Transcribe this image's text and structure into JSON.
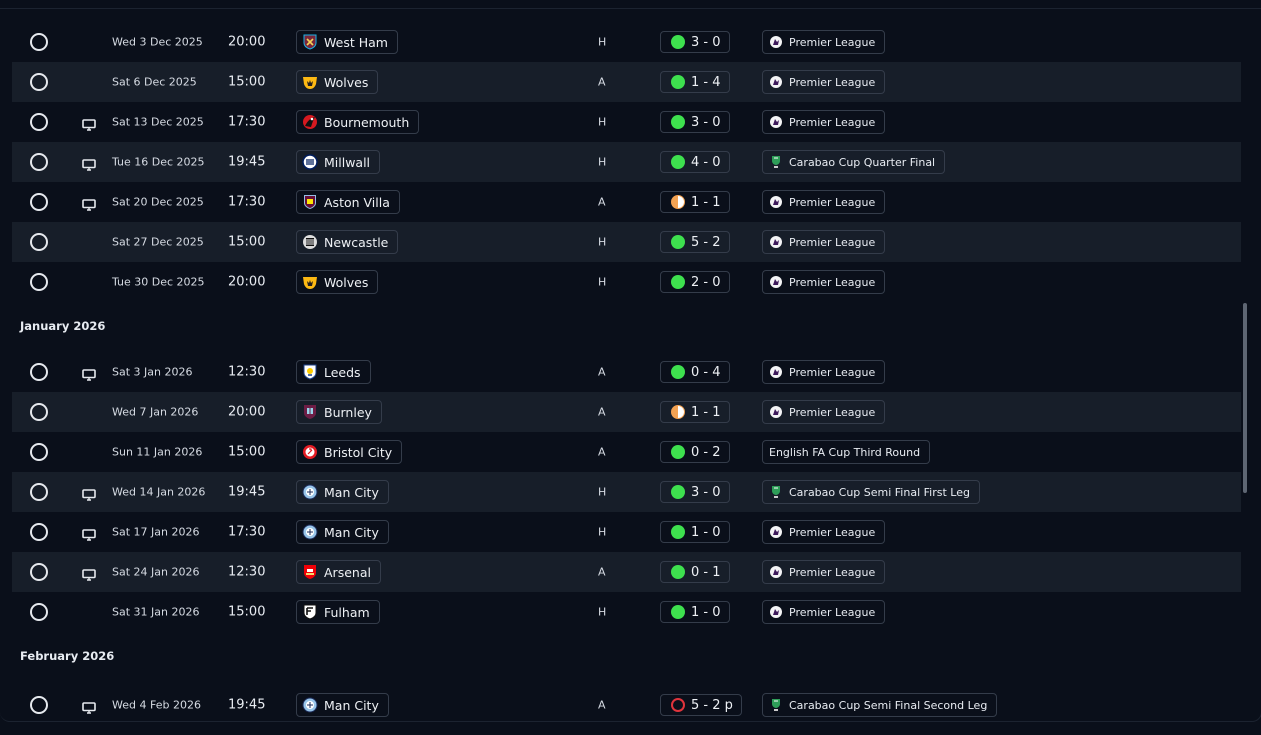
{
  "fixtures_dec": [
    {
      "date": "Wed 3 Dec 2025",
      "time": "20:00",
      "team": "West Ham",
      "crest": "westham",
      "tv": false,
      "venue": "H",
      "score": "3 - 0",
      "result": "win",
      "competition": "Premier League",
      "comp_icon": "pl"
    },
    {
      "date": "Sat 6 Dec 2025",
      "time": "15:00",
      "team": "Wolves",
      "crest": "wolves",
      "tv": false,
      "venue": "A",
      "score": "1 - 4",
      "result": "win",
      "competition": "Premier League",
      "comp_icon": "pl"
    },
    {
      "date": "Sat 13 Dec 2025",
      "time": "17:30",
      "team": "Bournemouth",
      "crest": "bournemouth",
      "tv": true,
      "venue": "H",
      "score": "3 - 0",
      "result": "win",
      "competition": "Premier League",
      "comp_icon": "pl"
    },
    {
      "date": "Tue 16 Dec 2025",
      "time": "19:45",
      "team": "Millwall",
      "crest": "millwall",
      "tv": true,
      "venue": "H",
      "score": "4 - 0",
      "result": "win",
      "competition": "Carabao Cup Quarter Final",
      "comp_icon": "cup"
    },
    {
      "date": "Sat 20 Dec 2025",
      "time": "17:30",
      "team": "Aston Villa",
      "crest": "villa",
      "tv": true,
      "venue": "A",
      "score": "1 - 1",
      "result": "draw",
      "competition": "Premier League",
      "comp_icon": "pl"
    },
    {
      "date": "Sat 27 Dec 2025",
      "time": "15:00",
      "team": "Newcastle",
      "crest": "newcastle",
      "tv": false,
      "venue": "H",
      "score": "5 - 2",
      "result": "win",
      "competition": "Premier League",
      "comp_icon": "pl"
    },
    {
      "date": "Tue 30 Dec 2025",
      "time": "20:00",
      "team": "Wolves",
      "crest": "wolves",
      "tv": false,
      "venue": "H",
      "score": "2 - 0",
      "result": "win",
      "competition": "Premier League",
      "comp_icon": "pl"
    }
  ],
  "month_jan": "January 2026",
  "fixtures_jan": [
    {
      "date": "Sat 3 Jan 2026",
      "time": "12:30",
      "team": "Leeds",
      "crest": "leeds",
      "tv": true,
      "venue": "A",
      "score": "0 - 4",
      "result": "win",
      "competition": "Premier League",
      "comp_icon": "pl"
    },
    {
      "date": "Wed 7 Jan 2026",
      "time": "20:00",
      "team": "Burnley",
      "crest": "burnley",
      "tv": false,
      "venue": "A",
      "score": "1 - 1",
      "result": "draw",
      "competition": "Premier League",
      "comp_icon": "pl"
    },
    {
      "date": "Sun 11 Jan 2026",
      "time": "15:00",
      "team": "Bristol City",
      "crest": "bristol",
      "tv": false,
      "venue": "A",
      "score": "0 - 2",
      "result": "win",
      "competition": "English FA Cup Third Round",
      "comp_icon": "none"
    },
    {
      "date": "Wed 14 Jan 2026",
      "time": "19:45",
      "team": "Man City",
      "crest": "mancity",
      "tv": true,
      "venue": "H",
      "score": "3 - 0",
      "result": "win",
      "competition": "Carabao Cup Semi Final First Leg",
      "comp_icon": "cup"
    },
    {
      "date": "Sat 17 Jan 2026",
      "time": "17:30",
      "team": "Man City",
      "crest": "mancity",
      "tv": true,
      "venue": "H",
      "score": "1 - 0",
      "result": "win",
      "competition": "Premier League",
      "comp_icon": "pl"
    },
    {
      "date": "Sat 24 Jan 2026",
      "time": "12:30",
      "team": "Arsenal",
      "crest": "arsenal",
      "tv": true,
      "venue": "A",
      "score": "0 - 1",
      "result": "win",
      "competition": "Premier League",
      "comp_icon": "pl"
    },
    {
      "date": "Sat 31 Jan 2026",
      "time": "15:00",
      "team": "Fulham",
      "crest": "fulham",
      "tv": false,
      "venue": "H",
      "score": "1 - 0",
      "result": "win",
      "competition": "Premier League",
      "comp_icon": "pl"
    }
  ],
  "month_feb": "February 2026",
  "fixtures_feb": [
    {
      "date": "Wed 4 Feb 2026",
      "time": "19:45",
      "team": "Man City",
      "crest": "mancity",
      "tv": true,
      "venue": "A",
      "score": "5 - 2 p",
      "result": "loss",
      "competition": "Carabao Cup Semi Final Second Leg",
      "comp_icon": "cup"
    }
  ],
  "colors": {
    "win": "#3ee04e",
    "draw": "#f3a252",
    "loss": "#e0343c",
    "row_alt": "#171e29",
    "background": "#0a0f1a"
  }
}
